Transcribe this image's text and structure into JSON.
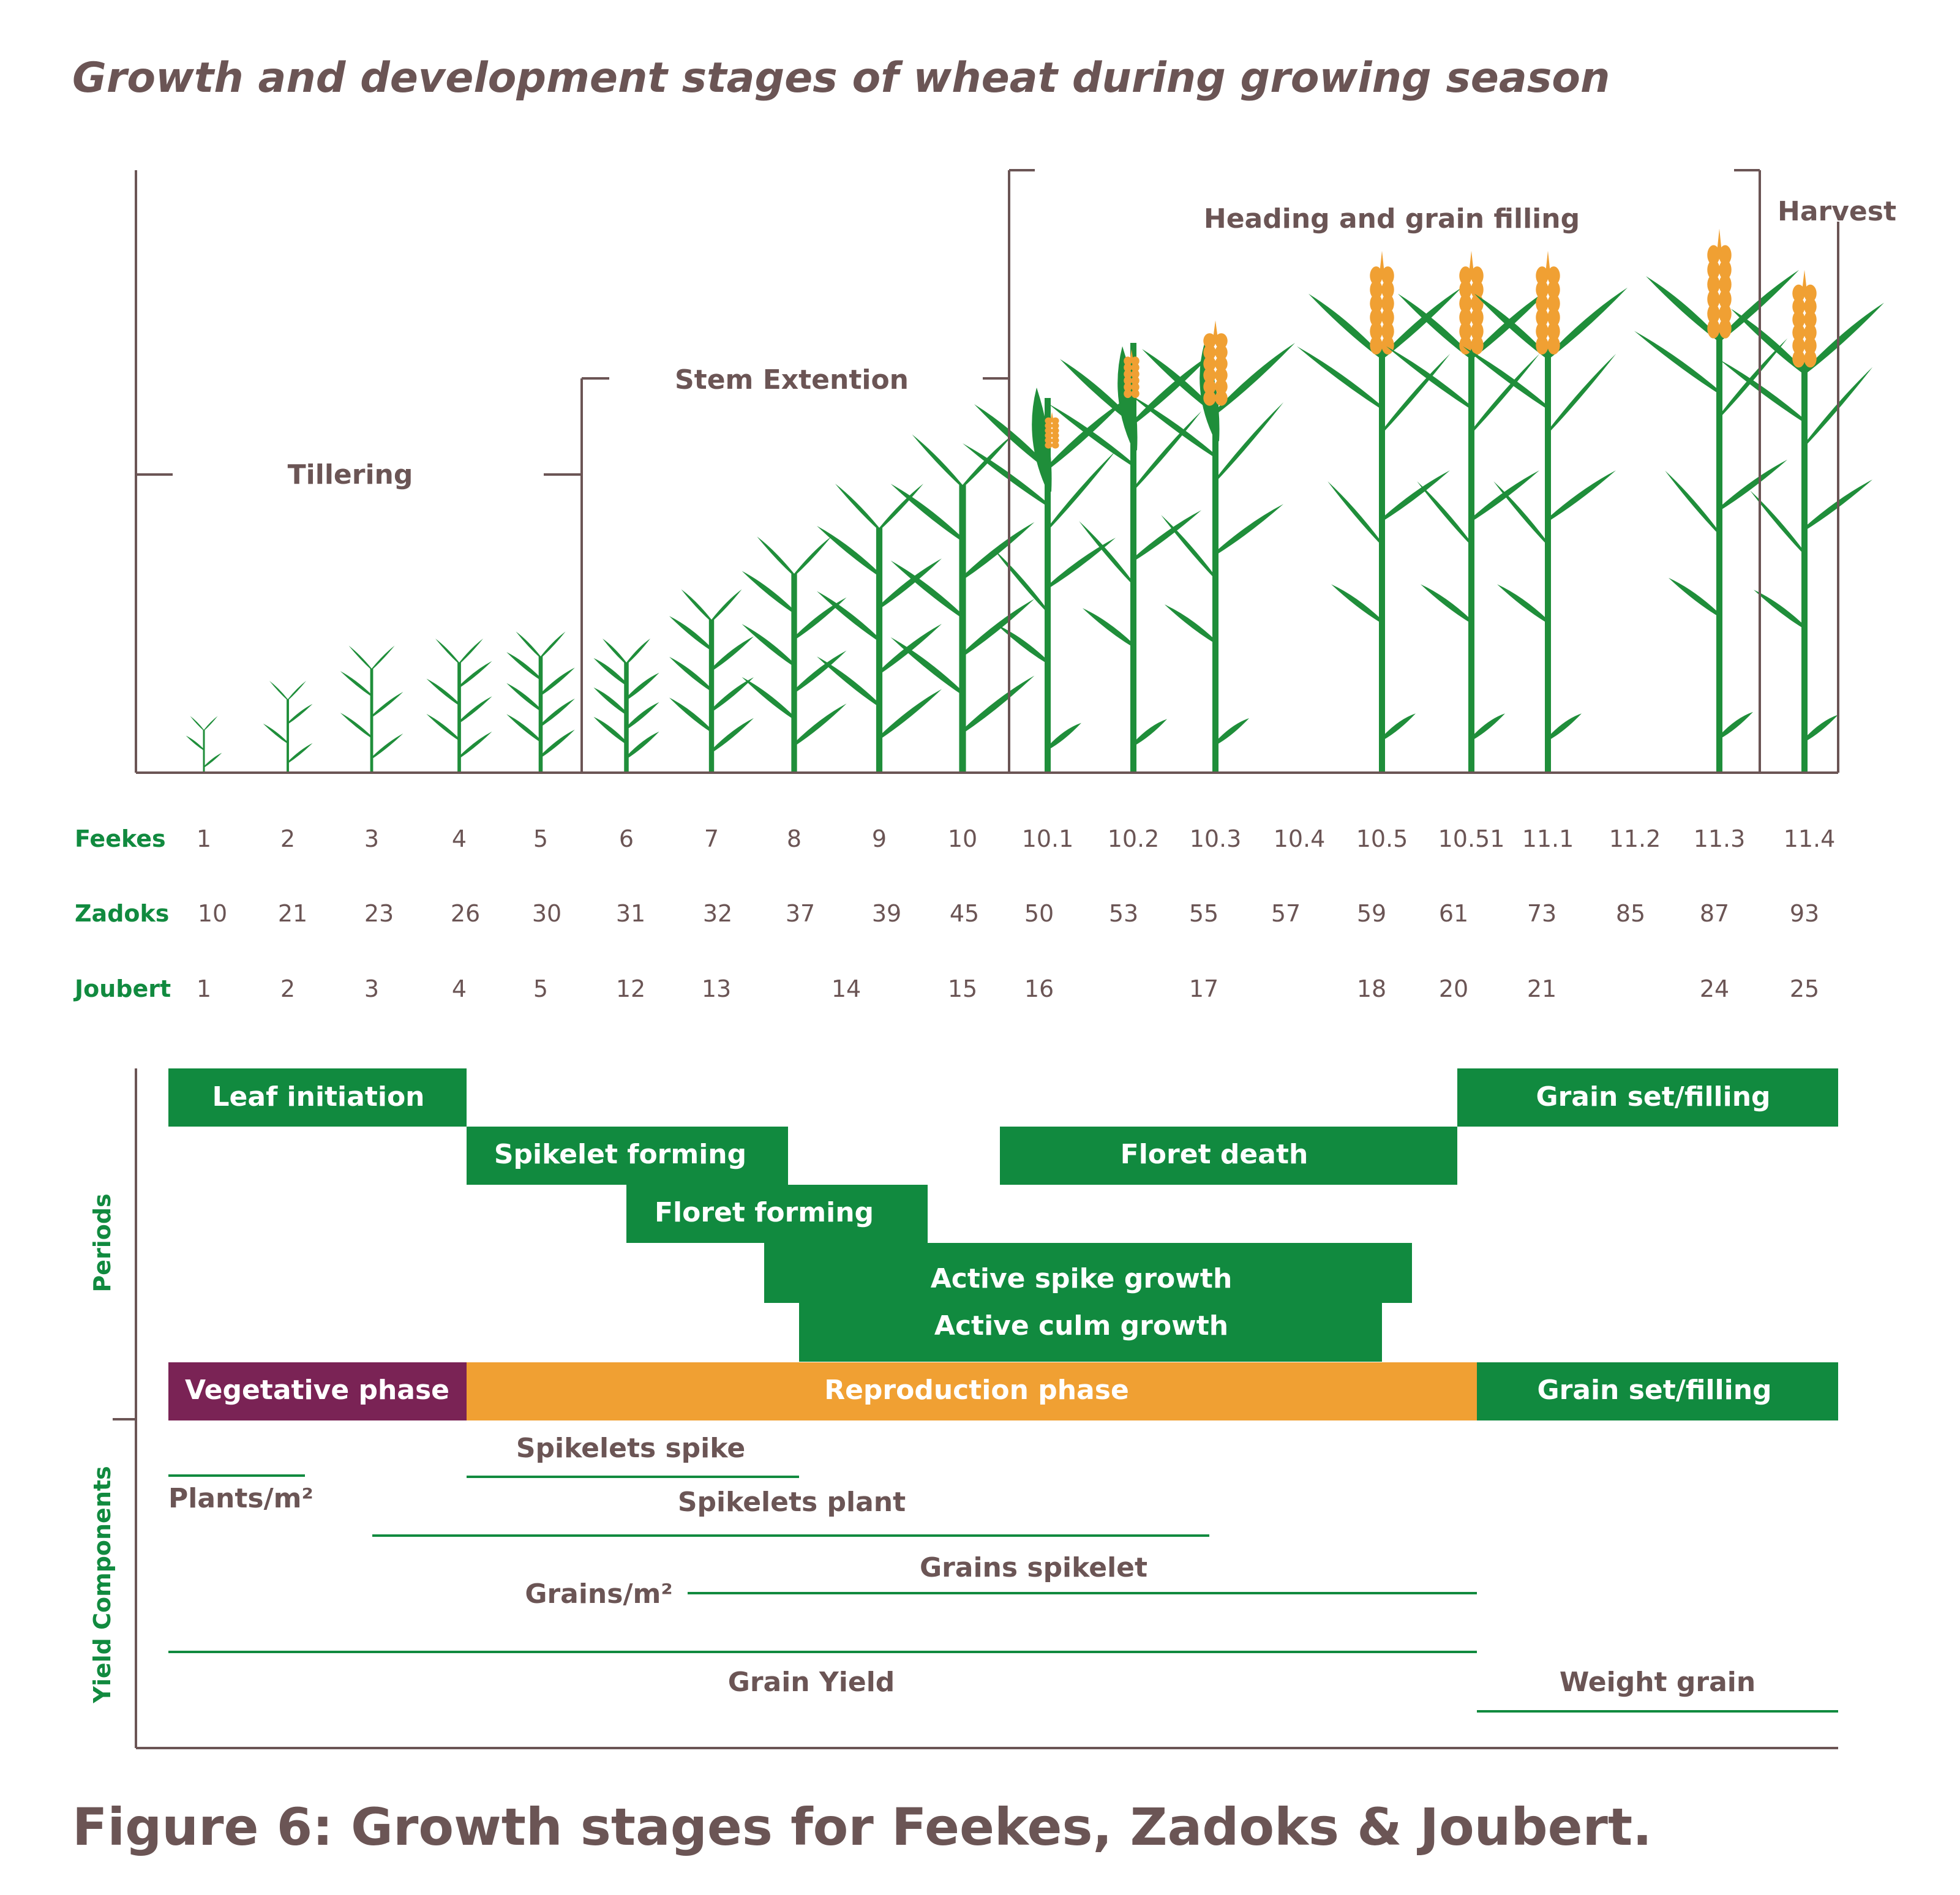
{
  "title": "Growth and development stages of wheat during growing season",
  "caption": "Figure 6: Growth stages for Feekes, Zadoks & Joubert.",
  "colors": {
    "text": "#6b5555",
    "green": "#118a3f",
    "plant": "#1f8e3a",
    "orange": "#f0a033",
    "purple": "#7a2355",
    "axis": "#6b5555"
  },
  "growth_stages": {
    "tillering": "Tillering",
    "stem_extension": "Stem Extention",
    "heading": "Heading and grain filling",
    "harvest": "Harvest"
  },
  "scales": {
    "feekes_label": "Feekes",
    "zadoks_label": "Zadoks",
    "joubert_label": "Joubert",
    "feekes": [
      "1",
      "2",
      "3",
      "4",
      "5",
      "6",
      "7",
      "8",
      "9",
      "10",
      "10.1",
      "10.2",
      "10.3",
      "10.4",
      "10.5",
      "10.51",
      "11.1",
      "11.2",
      "11.3",
      "11.4"
    ],
    "zadoks": [
      "10",
      "21",
      "23",
      "26",
      "30",
      "31",
      "32",
      "37",
      "39",
      "45",
      "50",
      "53",
      "55",
      "57",
      "59",
      "61",
      "73",
      "85",
      "87",
      "93"
    ],
    "joubert": [
      "1",
      "2",
      "3",
      "4",
      "5",
      "12",
      "13",
      "14",
      "15",
      "16",
      "17",
      "18",
      "20",
      "21",
      "24",
      "25"
    ]
  },
  "periods": {
    "axis_label": "Periods",
    "leaf_initiation": "Leaf initiation",
    "grain_set_top": "Grain set/filling",
    "spikelet_forming": "Spikelet forming",
    "floret_death": "Floret death",
    "floret_forming": "Floret forming",
    "active_spike_growth": "Active spike growth",
    "active_culm_growth": "Active culm growth",
    "vegetative_phase": "Vegetative phase",
    "reproduction_phase": "Reproduction phase",
    "grain_set_phase": "Grain set/filling"
  },
  "yield_components": {
    "axis_label": "Yield Components",
    "spikelets_spike": "Spikelets spike",
    "plants_m2": "Plants/m²",
    "spikelets_plant": "Spikelets plant",
    "grains_spikelet": "Grains spikelet",
    "grains_m2": "Grains/m²",
    "grain_yield": "Grain Yield",
    "weight_grain": "Weight grain"
  }
}
